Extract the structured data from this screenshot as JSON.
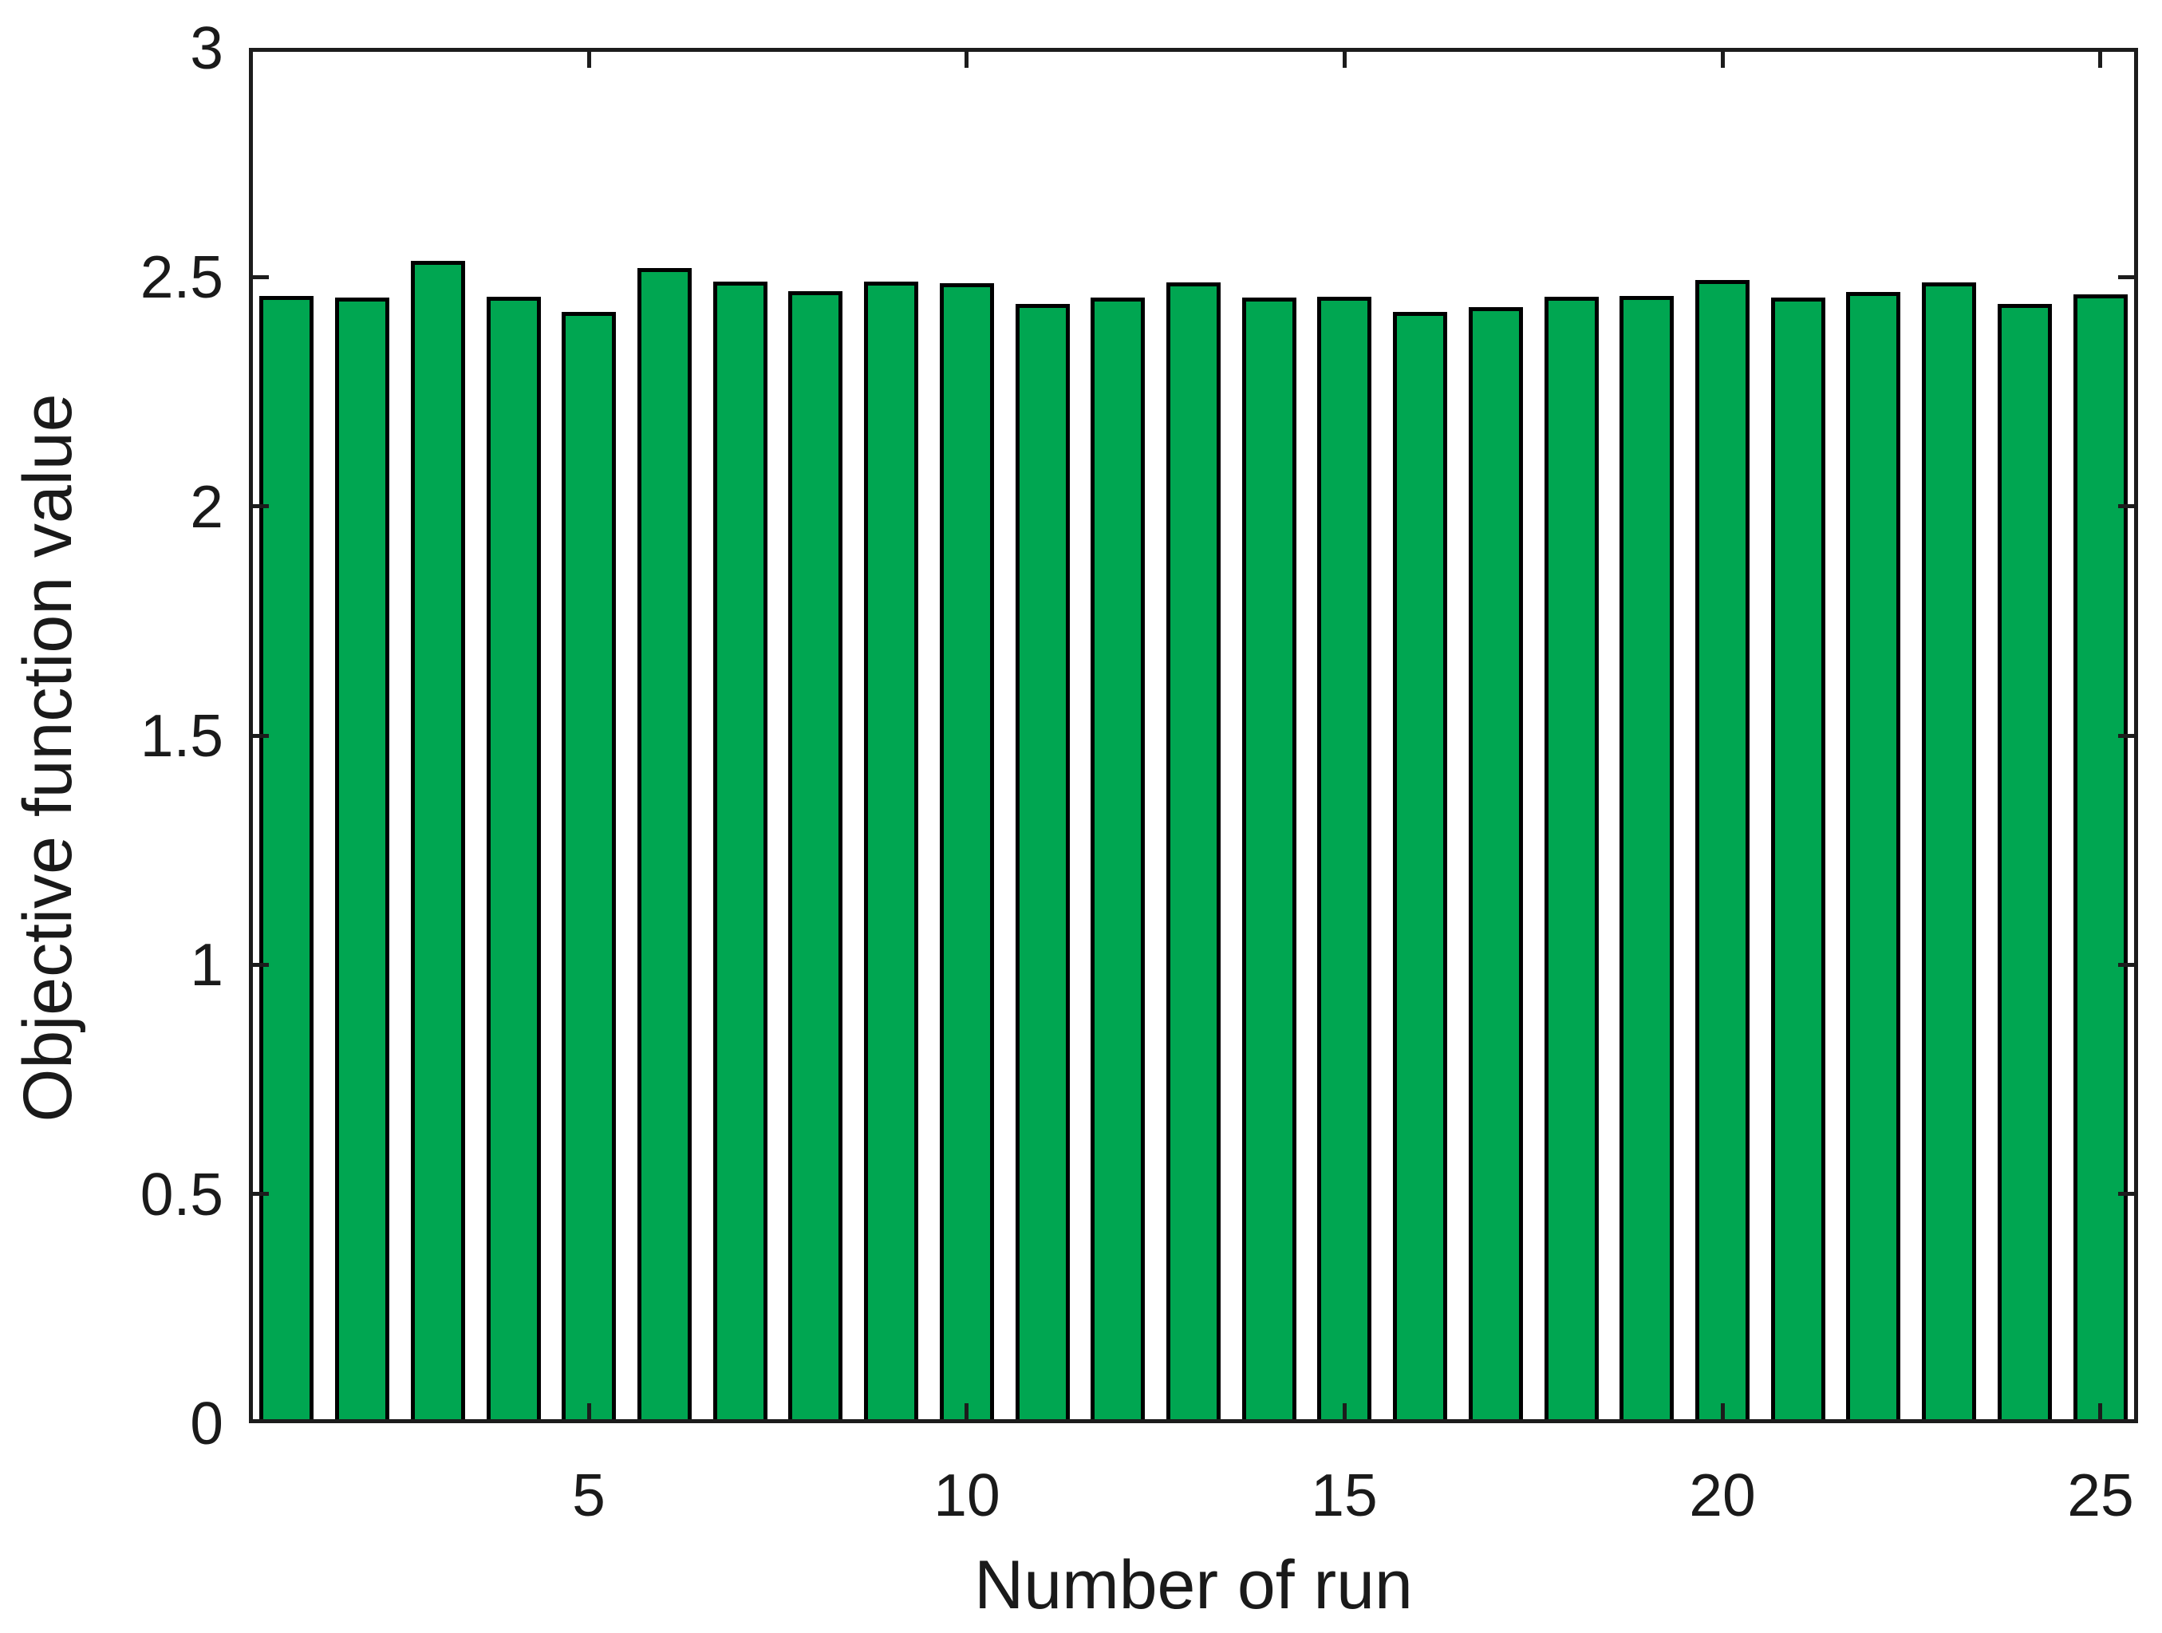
{
  "figure": {
    "background_color": "#FFFFFF"
  },
  "chart_data": {
    "type": "bar",
    "title": "",
    "xlabel": "Number of run",
    "ylabel": "Objective function value",
    "x": [
      1,
      2,
      3,
      4,
      5,
      6,
      7,
      8,
      9,
      10,
      11,
      12,
      13,
      14,
      15,
      16,
      17,
      18,
      19,
      20,
      21,
      22,
      23,
      24,
      25
    ],
    "values": [
      2.458,
      2.455,
      2.535,
      2.457,
      2.424,
      2.519,
      2.491,
      2.469,
      2.49,
      2.486,
      2.441,
      2.455,
      2.489,
      2.456,
      2.457,
      2.424,
      2.434,
      2.457,
      2.458,
      2.493,
      2.455,
      2.467,
      2.489,
      2.442,
      2.463
    ],
    "xlim": [
      0.5,
      25.5
    ],
    "ylim": [
      0,
      3
    ],
    "x_ticks": [
      5,
      10,
      15,
      20,
      25
    ],
    "x_tick_labels": [
      "5",
      "10",
      "15",
      "20",
      "25"
    ],
    "y_ticks": [
      0,
      0.5,
      1,
      1.5,
      2,
      2.5,
      3
    ],
    "y_tick_labels": [
      "0",
      "0.5",
      "1",
      "1.5",
      "2",
      "2.5",
      "3"
    ],
    "grid": false,
    "legend": null,
    "tick_direction": "in",
    "box": true,
    "bar_width_fraction": 0.72,
    "bar_color": "#00A651",
    "bar_edge_color": "#000000",
    "axis_color": "#1C1C1C",
    "text_color": "#1A1A1A"
  }
}
